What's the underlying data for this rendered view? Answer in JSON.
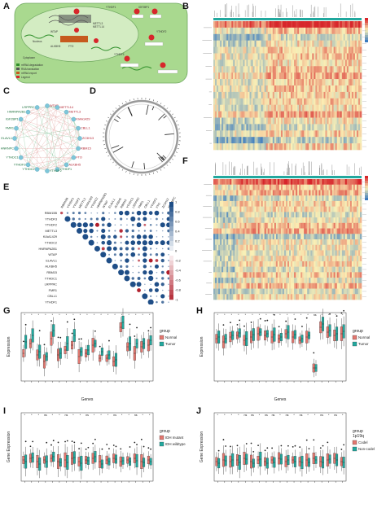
{
  "panels": {
    "A": {
      "label": "A",
      "items": [
        "YTHDF1",
        "IGF2BP1",
        "METTL3",
        "METTL14",
        "WTAP",
        "KIAA1429",
        "ZC3H13",
        "RBM15",
        "ALKBH5",
        "FTO",
        "YTHDC1",
        "HNRNPC",
        "YTHDF2",
        "YTHDF3",
        "Nucleus",
        "Cytoplasm",
        "mRNA degradation",
        "RNA translation",
        "mRNA export",
        "Legend"
      ]
    },
    "B": {
      "label": "B"
    },
    "C": {
      "label": "C",
      "nodes": [
        "WTAP",
        "METTL14",
        "METTL3",
        "KIAA1429",
        "CBLL1",
        "ZC3H13",
        "RBM15",
        "FTO",
        "ALKBH5",
        "YTHDF1",
        "YTHDF2",
        "YTHDC2",
        "YTHDF3",
        "YTHDC1",
        "HNRNPC",
        "ELAVL1",
        "FMR1",
        "IGF2BP1",
        "HNRNPA2B1",
        "LRPPRC"
      ]
    },
    "D": {
      "label": "D"
    },
    "E": {
      "label": "E",
      "genes": [
        "RBM15B",
        "YTHDF3",
        "YTHDF2",
        "METTL3",
        "KIAA1429",
        "YTHDC2",
        "HNRNPA2B1",
        "WTAP",
        "ELAVL1",
        "ALKBH5",
        "RBM15",
        "YTHDC1",
        "LRPPRC",
        "FMR1",
        "CBLL1",
        "YTHDF1",
        "FTO",
        "ZC3H13",
        "HNRNPC"
      ],
      "scale_ticks": [
        "1",
        "0.8",
        "0.6",
        "0.4",
        "0.2",
        "0",
        "-0.2",
        "-0.4",
        "-0.6",
        "-0.8",
        "-1"
      ]
    },
    "F": {
      "label": "F"
    },
    "G": {
      "label": "G",
      "ylabel": "Expression",
      "xlabel": "Genes",
      "legend_title": "group",
      "legend": [
        "Normal",
        "Tumor"
      ]
    },
    "H": {
      "label": "H",
      "ylabel": "Expression",
      "xlabel": "Genes",
      "legend_title": "group",
      "legend": [
        "Normal",
        "Tumor"
      ],
      "sig": "ns"
    },
    "I": {
      "label": "I",
      "ylabel": "Gene Expression",
      "legend_title": "group",
      "legend": [
        "IDH mutant",
        "IDH wildtype"
      ],
      "sig": "ns"
    },
    "J": {
      "label": "J",
      "ylabel": "Gene Expression",
      "legend_title": "group",
      "legend_title2": "1p19q",
      "legend": [
        "Codel",
        "Non-codel"
      ],
      "sig": "ns"
    }
  },
  "colors": {
    "normal": "#e3776f",
    "tumor": "#22a89e",
    "cell_bg": "#a9d98f",
    "nucleus": "#d3ecc2",
    "heat_low": "#3a7bbf",
    "heat_mid": "#fbf1b6",
    "heat_high": "#d7262b",
    "corr_pos": "#1f4e87",
    "corr_neg": "#b01e2b"
  }
}
